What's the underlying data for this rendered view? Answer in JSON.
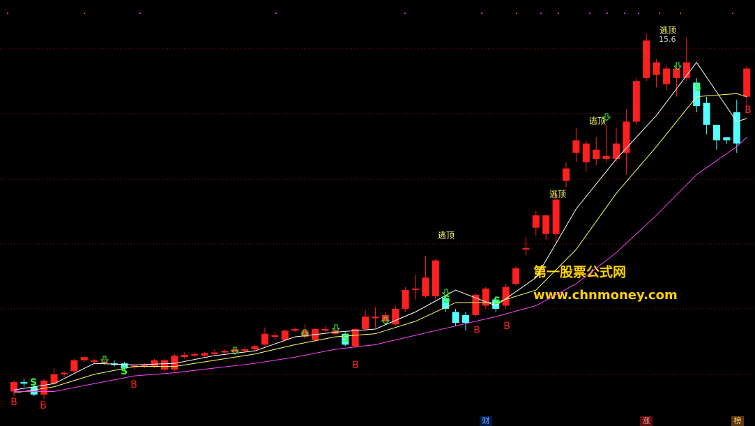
{
  "chart_data": {
    "type": "candlestick",
    "ylim": [
      4.2,
      17.5
    ],
    "up_color": "#ff2020",
    "down_color": "#54ffff",
    "open": [
      4.95,
      5.25,
      5.1,
      4.85,
      5.2,
      5.5,
      5.6,
      5.95,
      5.9,
      5.85,
      5.85,
      5.85,
      5.72,
      5.75,
      5.75,
      5.65,
      5.65,
      6.05,
      6.1,
      6.1,
      6.15,
      6.2,
      6.22,
      6.25,
      6.3,
      6.45,
      6.7,
      6.6,
      6.9,
      6.7,
      6.6,
      6.9,
      6.8,
      6.8,
      6.4,
      6.95,
      7.3,
      7.2,
      7.1,
      7.6,
      8.2,
      8.0,
      8.0,
      7.95,
      7.5,
      7.4,
      7.4,
      7.7,
      7.9,
      7.7,
      8.4,
      9.5,
      10.2,
      10.0,
      10.0,
      11.7,
      12.6,
      12.3,
      12.4,
      12.4,
      12.4,
      12.6,
      13.6,
      15.0,
      15.1,
      14.8,
      15.0,
      15.0,
      14.85,
      14.2,
      13.5,
      13.1,
      13.9,
      14.4
    ],
    "high": [
      5.3,
      5.35,
      5.2,
      5.35,
      5.7,
      5.6,
      6.0,
      6.05,
      6.0,
      6.05,
      5.95,
      5.9,
      5.8,
      5.85,
      6.0,
      6.0,
      6.15,
      6.2,
      6.2,
      6.22,
      6.3,
      6.3,
      6.35,
      6.4,
      6.45,
      7.0,
      6.85,
      6.95,
      7.0,
      7.1,
      7.0,
      7.05,
      7.0,
      6.85,
      7.0,
      7.55,
      7.65,
      7.5,
      7.7,
      8.3,
      8.7,
      9.3,
      9.2,
      8.0,
      7.6,
      7.5,
      8.1,
      8.3,
      8.0,
      8.4,
      8.95,
      9.9,
      10.75,
      10.6,
      11.3,
      12.3,
      13.4,
      13.0,
      13.1,
      13.5,
      13.4,
      14.0,
      15.0,
      16.42,
      15.6,
      15.4,
      15.5,
      16.3,
      15.0,
      14.4,
      13.5,
      13.1,
      14.3,
      15.4
    ],
    "low": [
      4.8,
      5.1,
      4.8,
      4.7,
      5.15,
      5.4,
      5.55,
      5.9,
      5.85,
      5.8,
      5.75,
      5.6,
      5.65,
      5.7,
      5.7,
      5.6,
      5.6,
      6.0,
      6.05,
      6.05,
      6.1,
      6.15,
      6.2,
      6.2,
      6.25,
      6.4,
      6.6,
      6.55,
      6.85,
      6.65,
      6.55,
      6.85,
      6.75,
      6.4,
      6.35,
      6.9,
      7.0,
      7.1,
      7.05,
      7.5,
      7.9,
      7.95,
      7.9,
      7.5,
      7.05,
      6.9,
      7.35,
      7.6,
      7.5,
      7.6,
      8.35,
      9.3,
      9.95,
      9.8,
      9.7,
      11.5,
      12.3,
      12.0,
      12.2,
      12.3,
      12.3,
      11.9,
      13.5,
      14.9,
      14.7,
      14.6,
      14.4,
      14.9,
      13.9,
      13.2,
      12.7,
      12.9,
      12.6,
      14.1
    ],
    "close": [
      5.25,
      5.2,
      4.85,
      5.3,
      5.5,
      5.55,
      5.95,
      6.05,
      5.95,
      5.9,
      5.8,
      5.7,
      5.78,
      5.8,
      5.95,
      5.95,
      6.1,
      6.12,
      6.15,
      6.18,
      6.2,
      6.25,
      6.3,
      6.3,
      6.4,
      6.8,
      6.75,
      6.9,
      6.95,
      6.9,
      6.95,
      6.95,
      6.9,
      6.45,
      6.95,
      7.35,
      7.35,
      7.4,
      7.6,
      8.2,
      8.25,
      8.6,
      9.15,
      7.6,
      7.15,
      7.15,
      8.05,
      8.25,
      7.6,
      8.3,
      8.9,
      9.55,
      10.6,
      10.6,
      11.1,
      12.1,
      13.0,
      12.9,
      12.7,
      12.5,
      12.9,
      13.6,
      14.9,
      16.2,
      15.5,
      15.3,
      15.3,
      15.5,
      14.1,
      13.5,
      13.0,
      13.0,
      12.9,
      15.3
    ],
    "series": [
      {
        "color": "#ffffff",
        "x": [
          0,
          4,
          8,
          12,
          16,
          20,
          24,
          28,
          32,
          36,
          40,
          44,
          48,
          52,
          56,
          60,
          64,
          68,
          72,
          73
        ],
        "values": [
          5.0,
          5.2,
          5.85,
          5.8,
          5.85,
          6.1,
          6.25,
          6.7,
          6.85,
          6.95,
          7.5,
          8.2,
          7.7,
          8.6,
          10.8,
          12.4,
          13.8,
          15.5,
          13.6,
          13.7
        ]
      },
      {
        "color": "#ffff66",
        "x": [
          0,
          4,
          8,
          12,
          16,
          20,
          24,
          28,
          32,
          36,
          40,
          44,
          48,
          52,
          56,
          60,
          64,
          68,
          72,
          73
        ],
        "values": [
          4.9,
          5.1,
          5.5,
          5.75,
          5.75,
          5.95,
          6.15,
          6.45,
          6.7,
          6.8,
          7.2,
          7.8,
          7.8,
          8.2,
          9.5,
          11.3,
          12.8,
          14.4,
          14.5,
          14.4
        ]
      },
      {
        "color": "#ff44ff",
        "x": [
          0,
          4,
          8,
          12,
          16,
          20,
          24,
          28,
          32,
          36,
          40,
          44,
          48,
          52,
          56,
          60,
          64,
          68,
          72,
          73
        ],
        "values": [
          4.95,
          4.95,
          5.2,
          5.45,
          5.55,
          5.7,
          5.85,
          6.05,
          6.3,
          6.45,
          6.75,
          7.05,
          7.35,
          7.7,
          8.4,
          9.4,
          10.6,
          11.9,
          12.8,
          13.1
        ]
      }
    ],
    "escape_label": "逃顶",
    "buy_label": "B",
    "sell_label": "S",
    "watermark": [
      "第一股票公式网",
      "www.chnmoney.com"
    ],
    "tabs": [
      "财",
      "涨",
      "榜"
    ]
  }
}
